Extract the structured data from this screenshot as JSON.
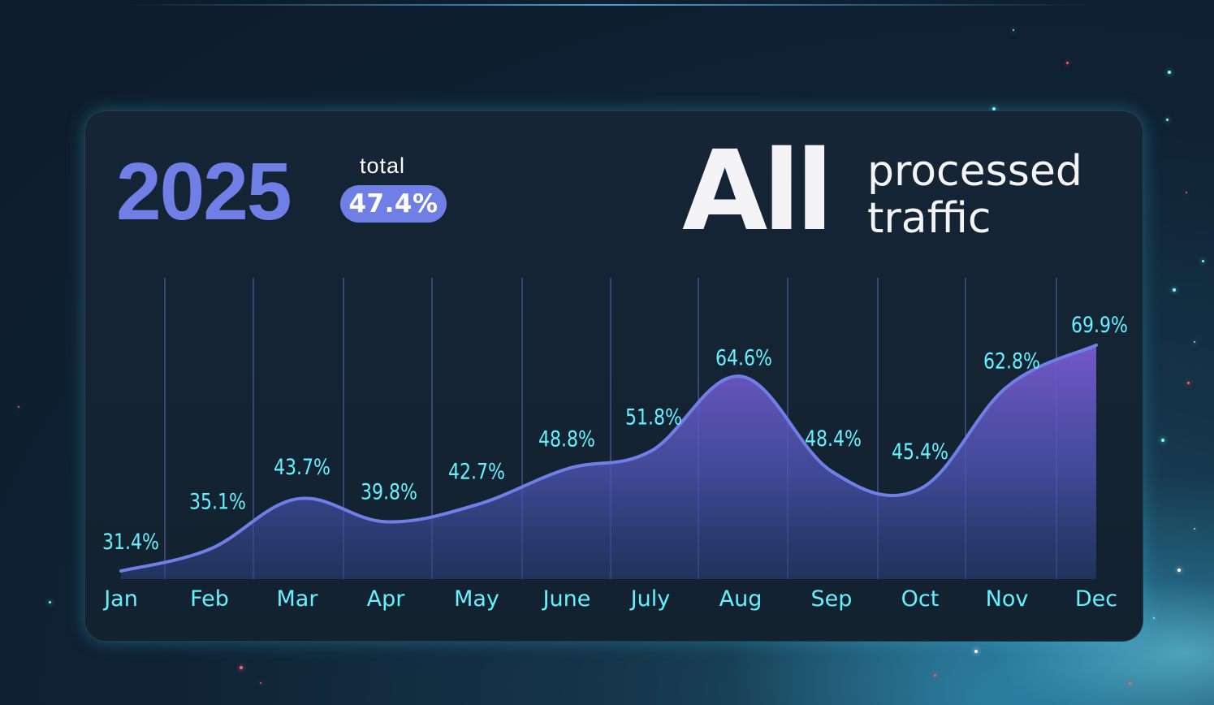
{
  "header": {
    "year": "2025",
    "total_label": "total",
    "total_value": "47.4%",
    "headline_big": "All",
    "headline_line1": "processed",
    "headline_line2": "traffic"
  },
  "colors": {
    "accent": "#6f7fe6",
    "label": "#66f0ff",
    "line": "#6f7fe6",
    "background": "#0f2234"
  },
  "chart_data": {
    "type": "area",
    "categories": [
      "Jan",
      "Feb",
      "Mar",
      "Apr",
      "May",
      "June",
      "July",
      "Aug",
      "Sep",
      "Oct",
      "Nov",
      "Dec"
    ],
    "values": [
      31.4,
      35.1,
      43.7,
      39.8,
      42.7,
      48.8,
      51.8,
      64.6,
      48.4,
      45.4,
      62.8,
      69.9
    ],
    "value_labels": [
      "31.4%",
      "35.1%",
      "43.7%",
      "39.8%",
      "42.7%",
      "48.8%",
      "51.8%",
      "64.6%",
      "48.4%",
      "45.4%",
      "62.8%",
      "69.9%"
    ],
    "unit": "%",
    "grid": "vertical",
    "legend": "none"
  }
}
